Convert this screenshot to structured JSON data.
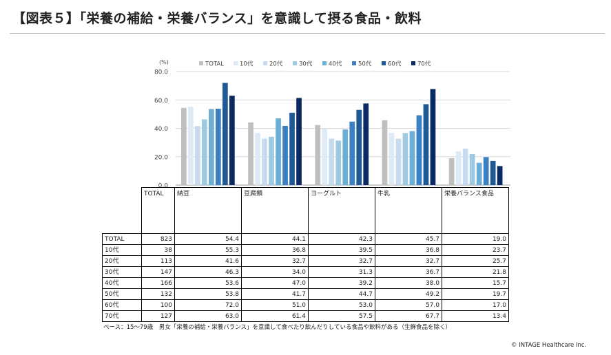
{
  "title": "【図表５】「栄養の補給・栄養バランス」を意識して摂る食品・飲料",
  "chart_data": {
    "type": "bar",
    "unit_label": "(%)",
    "ylim": [
      0,
      80
    ],
    "yticks": [
      "0.0",
      "20.0",
      "40.0",
      "60.0",
      "80.0"
    ],
    "grid": true,
    "legend": "top",
    "categories": [
      "納豆",
      "豆腐類",
      "ヨーグルト",
      "牛乳",
      "栄養バランス食品"
    ],
    "series": [
      {
        "name": "TOTAL",
        "color": "#bfbfbf",
        "values": [
          54.4,
          44.1,
          42.3,
          45.7,
          19.0
        ]
      },
      {
        "name": "10代",
        "color": "#deebf7",
        "values": [
          55.3,
          36.8,
          39.5,
          36.8,
          23.7
        ]
      },
      {
        "name": "20代",
        "color": "#c6dbef",
        "values": [
          41.6,
          32.7,
          32.7,
          32.7,
          25.7
        ]
      },
      {
        "name": "30代",
        "color": "#9ecae1",
        "values": [
          46.3,
          34.0,
          31.3,
          36.7,
          21.8
        ]
      },
      {
        "name": "40代",
        "color": "#6baed6",
        "values": [
          53.6,
          47.0,
          39.2,
          38.0,
          15.7
        ]
      },
      {
        "name": "50代",
        "color": "#3a80c2",
        "values": [
          53.8,
          41.7,
          44.7,
          49.2,
          19.7
        ]
      },
      {
        "name": "60代",
        "color": "#1f5a96",
        "values": [
          72.0,
          51.0,
          53.0,
          57.0,
          17.0
        ]
      },
      {
        "name": "70代",
        "color": "#0b2a63",
        "values": [
          63.0,
          61.4,
          57.5,
          67.7,
          13.4
        ]
      }
    ]
  },
  "table": {
    "header": [
      "TOTAL",
      "納豆",
      "豆腐類",
      "ヨーグルト",
      "牛乳",
      "栄養バランス食品"
    ],
    "rows": [
      {
        "label": "TOTAL",
        "n": "823",
        "values": [
          "54.4",
          "44.1",
          "42.3",
          "45.7",
          "19.0"
        ]
      },
      {
        "label": "10代",
        "n": "38",
        "values": [
          "55.3",
          "36.8",
          "39.5",
          "36.8",
          "23.7"
        ]
      },
      {
        "label": "20代",
        "n": "113",
        "values": [
          "41.6",
          "32.7",
          "32.7",
          "32.7",
          "25.7"
        ]
      },
      {
        "label": "30代",
        "n": "147",
        "values": [
          "46.3",
          "34.0",
          "31.3",
          "36.7",
          "21.8"
        ]
      },
      {
        "label": "40代",
        "n": "166",
        "values": [
          "53.6",
          "47.0",
          "39.2",
          "38.0",
          "15.7"
        ]
      },
      {
        "label": "50代",
        "n": "132",
        "values": [
          "53.8",
          "41.7",
          "44.7",
          "49.2",
          "19.7"
        ]
      },
      {
        "label": "60代",
        "n": "100",
        "values": [
          "72.0",
          "51.0",
          "53.0",
          "57.0",
          "17.0"
        ]
      },
      {
        "label": "70代",
        "n": "127",
        "values": [
          "63.0",
          "61.4",
          "57.5",
          "67.7",
          "13.4"
        ]
      }
    ]
  },
  "note": "ベース：15～79歳　男女「栄養の補給・栄養バランス」を意識して食べたり飲んだりしている食品や飲料がある（生鮮食品を除く）",
  "copyright": "© INTAGE Healthcare Inc."
}
